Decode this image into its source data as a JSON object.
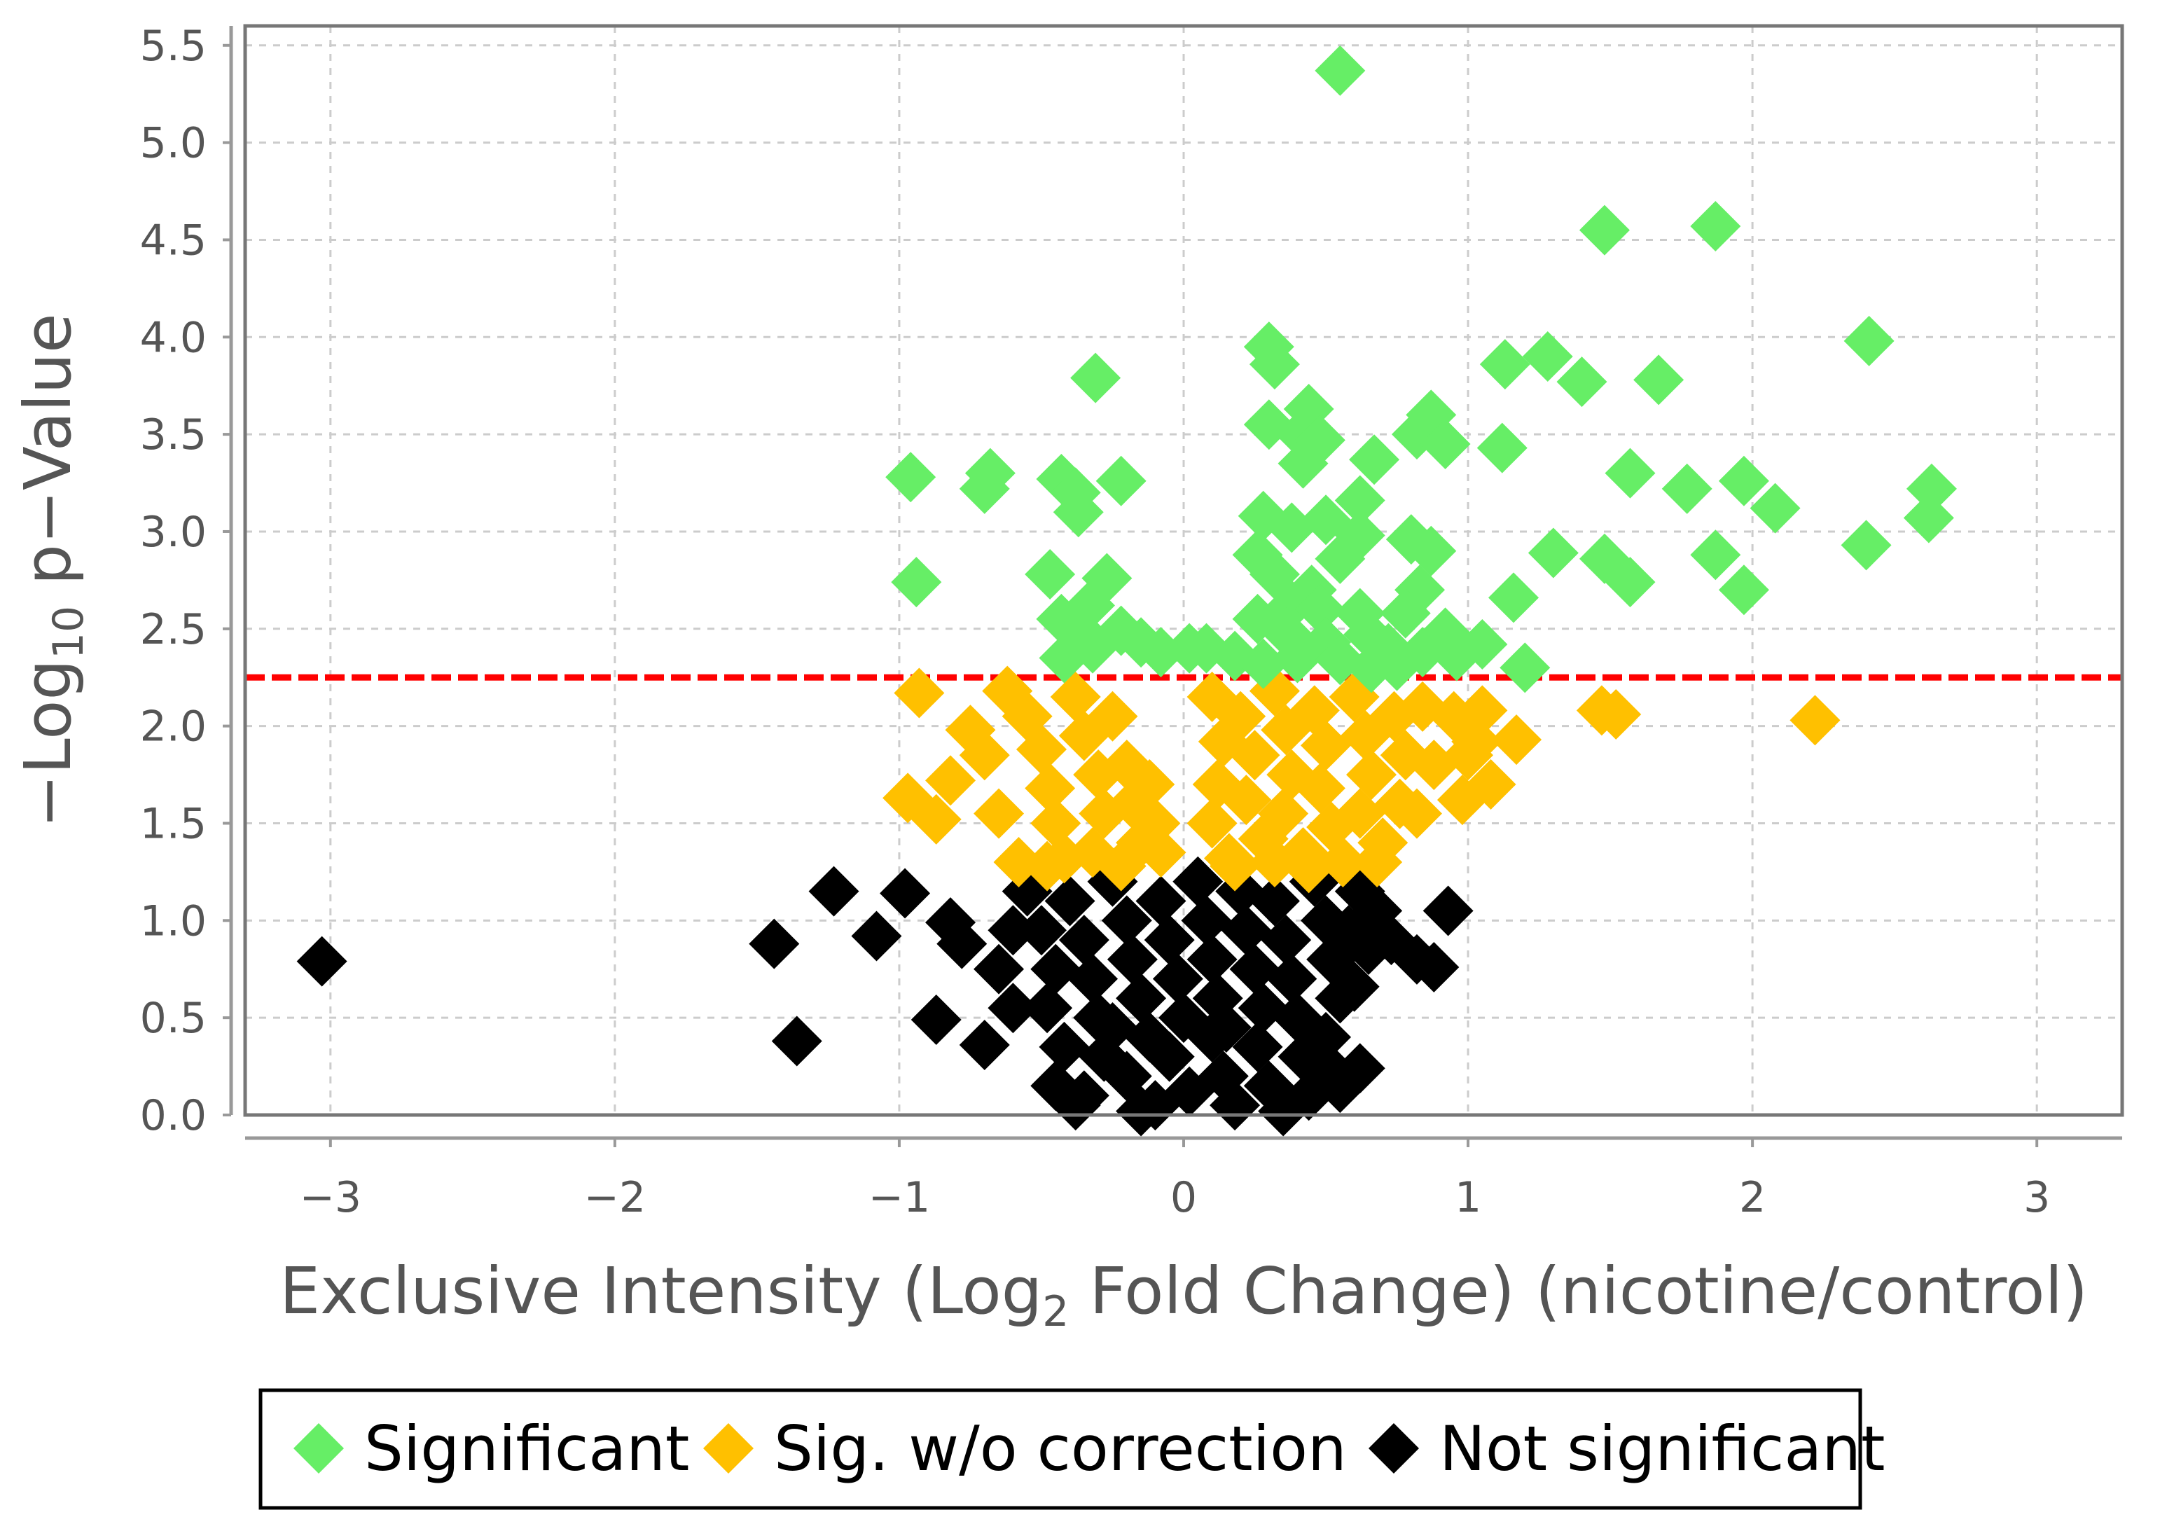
{
  "chart_data": {
    "type": "scatter",
    "xlabel_parts": [
      "Exclusive Intensity (Log",
      "2",
      " Fold Change) (nicotine/control)"
    ],
    "ylabel_parts": [
      "−Log",
      "10",
      " p−Value"
    ],
    "xlim": [
      -3.3,
      3.3
    ],
    "ylim": [
      0,
      5.6
    ],
    "xticks": [
      -3,
      -2,
      -1,
      0,
      1,
      2,
      3
    ],
    "xtick_labels": [
      "−3",
      "−2",
      "−1",
      "0",
      "1",
      "2",
      "3"
    ],
    "yticks": [
      0,
      0.5,
      1,
      1.5,
      2,
      2.5,
      3,
      3.5,
      4,
      4.5,
      5,
      5.5
    ],
    "ytick_labels": [
      "0.0",
      "0.5",
      "1.0",
      "1.5",
      "2.0",
      "2.5",
      "3.0",
      "3.5",
      "4.0",
      "4.5",
      "5.0",
      "5.5"
    ],
    "grid": true,
    "legend_position": "bottom",
    "threshold": {
      "y": 2.25,
      "color": "#ff0000",
      "style": "dashed"
    },
    "series": [
      {
        "name": "Significant",
        "color": "#66ee66",
        "points": [
          [
            0.55,
            5.37
          ],
          [
            1.48,
            4.55
          ],
          [
            1.87,
            4.57
          ],
          [
            2.41,
            3.98
          ],
          [
            1.13,
            3.86
          ],
          [
            1.28,
            3.9
          ],
          [
            1.4,
            3.77
          ],
          [
            1.67,
            3.78
          ],
          [
            0.3,
            3.95
          ],
          [
            0.32,
            3.86
          ],
          [
            0.44,
            3.63
          ],
          [
            0.3,
            3.55
          ],
          [
            0.41,
            3.5
          ],
          [
            0.48,
            3.47
          ],
          [
            0.42,
            3.35
          ],
          [
            0.67,
            3.37
          ],
          [
            0.82,
            3.5
          ],
          [
            0.87,
            3.6
          ],
          [
            0.92,
            3.45
          ],
          [
            1.12,
            3.43
          ],
          [
            1.57,
            3.3
          ],
          [
            1.77,
            3.22
          ],
          [
            1.97,
            3.26
          ],
          [
            2.08,
            3.12
          ],
          [
            2.63,
            3.22
          ],
          [
            2.62,
            3.07
          ],
          [
            2.4,
            2.93
          ],
          [
            1.3,
            2.89
          ],
          [
            1.48,
            2.86
          ],
          [
            1.87,
            2.88
          ],
          [
            1.97,
            2.7
          ],
          [
            1.57,
            2.74
          ],
          [
            1.16,
            2.66
          ],
          [
            1.05,
            2.42
          ],
          [
            1.2,
            2.3
          ],
          [
            -0.96,
            3.28
          ],
          [
            -0.7,
            3.22
          ],
          [
            -0.68,
            3.3
          ],
          [
            -0.43,
            3.27
          ],
          [
            -0.38,
            3.2
          ],
          [
            -0.37,
            3.1
          ],
          [
            -0.22,
            3.26
          ],
          [
            -0.31,
            3.79
          ],
          [
            -0.94,
            2.74
          ],
          [
            -0.47,
            2.78
          ],
          [
            -0.27,
            2.76
          ],
          [
            -0.33,
            2.62
          ],
          [
            -0.43,
            2.55
          ],
          [
            -0.35,
            2.47
          ],
          [
            -0.15,
            2.43
          ],
          [
            -0.42,
            2.35
          ],
          [
            -0.32,
            2.4
          ],
          [
            -0.22,
            2.49
          ],
          [
            -0.08,
            2.38
          ],
          [
            0.28,
            3.08
          ],
          [
            0.38,
            3.02
          ],
          [
            0.5,
            3.06
          ],
          [
            0.62,
            3.16
          ],
          [
            0.62,
            2.98
          ],
          [
            0.26,
            2.88
          ],
          [
            0.32,
            2.78
          ],
          [
            0.45,
            2.7
          ],
          [
            0.55,
            2.86
          ],
          [
            0.38,
            2.62
          ],
          [
            0.48,
            2.6
          ],
          [
            0.62,
            2.58
          ],
          [
            0.26,
            2.55
          ],
          [
            0.36,
            2.48
          ],
          [
            0.5,
            2.43
          ],
          [
            0.65,
            2.47
          ],
          [
            0.08,
            2.4
          ],
          [
            0.18,
            2.36
          ],
          [
            0.28,
            2.32
          ],
          [
            0.4,
            2.35
          ],
          [
            0.55,
            2.34
          ],
          [
            0.02,
            2.4
          ],
          [
            0.8,
            2.96
          ],
          [
            0.87,
            2.9
          ],
          [
            0.83,
            2.7
          ],
          [
            0.78,
            2.58
          ],
          [
            0.92,
            2.48
          ],
          [
            0.84,
            2.38
          ],
          [
            0.72,
            2.4
          ],
          [
            0.96,
            2.36
          ],
          [
            0.75,
            2.31
          ],
          [
            0.66,
            2.3
          ]
        ]
      },
      {
        "name": "Sig. w/o correction",
        "color": "#ffc000",
        "points": [
          [
            1.47,
            2.08
          ],
          [
            1.52,
            2.06
          ],
          [
            2.22,
            2.03
          ],
          [
            -0.93,
            2.17
          ],
          [
            -0.97,
            1.63
          ],
          [
            -0.87,
            1.52
          ],
          [
            -0.62,
            2.18
          ],
          [
            -0.75,
            1.98
          ],
          [
            -0.82,
            1.72
          ],
          [
            -0.7,
            1.85
          ],
          [
            -0.65,
            1.55
          ],
          [
            -0.55,
            2.05
          ],
          [
            -0.5,
            1.88
          ],
          [
            -0.47,
            1.68
          ],
          [
            -0.45,
            1.5
          ],
          [
            -0.42,
            1.32
          ],
          [
            -0.38,
            2.15
          ],
          [
            -0.35,
            1.95
          ],
          [
            -0.3,
            1.75
          ],
          [
            -0.28,
            1.55
          ],
          [
            -0.32,
            1.35
          ],
          [
            -0.25,
            2.05
          ],
          [
            -0.2,
            1.8
          ],
          [
            -0.18,
            1.6
          ],
          [
            -0.15,
            1.4
          ],
          [
            -0.12,
            1.7
          ],
          [
            -0.1,
            1.5
          ],
          [
            -0.58,
            1.3
          ],
          [
            -0.08,
            1.35
          ],
          [
            0.1,
            2.15
          ],
          [
            0.14,
            1.92
          ],
          [
            0.12,
            1.7
          ],
          [
            0.1,
            1.5
          ],
          [
            0.16,
            1.32
          ],
          [
            0.2,
            2.05
          ],
          [
            0.25,
            1.85
          ],
          [
            0.22,
            1.62
          ],
          [
            0.28,
            1.42
          ],
          [
            0.32,
            2.18
          ],
          [
            0.36,
            1.98
          ],
          [
            0.38,
            1.75
          ],
          [
            0.35,
            1.55
          ],
          [
            0.42,
            1.35
          ],
          [
            0.46,
            2.08
          ],
          [
            0.5,
            1.9
          ],
          [
            0.48,
            1.68
          ],
          [
            0.52,
            1.48
          ],
          [
            0.56,
            1.3
          ],
          [
            0.6,
            2.15
          ],
          [
            0.64,
            1.95
          ],
          [
            0.66,
            1.75
          ],
          [
            0.62,
            1.55
          ],
          [
            0.7,
            1.4
          ],
          [
            0.74,
            2.05
          ],
          [
            0.78,
            1.85
          ],
          [
            0.76,
            1.6
          ],
          [
            0.68,
            1.3
          ],
          [
            0.84,
            2.1
          ],
          [
            0.88,
            1.8
          ],
          [
            0.82,
            1.55
          ],
          [
            0.95,
            2.05
          ],
          [
            1.05,
            2.08
          ],
          [
            1.0,
            1.85
          ],
          [
            1.08,
            1.7
          ],
          [
            1.17,
            1.93
          ],
          [
            0.98,
            1.62
          ],
          [
            1.03,
            1.92
          ],
          [
            0.18,
            1.28
          ],
          [
            0.32,
            1.3
          ],
          [
            0.44,
            1.27
          ],
          [
            -0.22,
            1.28
          ],
          [
            -0.48,
            1.28
          ]
        ]
      },
      {
        "name": "Not significant",
        "color": "#000000",
        "points": [
          [
            -3.03,
            0.79
          ],
          [
            -1.44,
            0.88
          ],
          [
            -1.23,
            1.15
          ],
          [
            -0.98,
            1.14
          ],
          [
            -1.08,
            0.92
          ],
          [
            -0.82,
            0.99
          ],
          [
            -0.87,
            0.49
          ],
          [
            -1.36,
            0.38
          ],
          [
            -0.7,
            0.36
          ],
          [
            -0.6,
            0.55
          ],
          [
            -0.78,
            0.88
          ],
          [
            0.93,
            1.05
          ],
          [
            0.82,
            0.8
          ],
          [
            0.88,
            0.76
          ],
          [
            0.73,
            0.9
          ],
          [
            0.6,
            0.66
          ],
          [
            0.55,
            0.14
          ],
          [
            0.5,
            0.26
          ],
          [
            0.62,
            0.24
          ],
          [
            -0.55,
            1.15
          ],
          [
            -0.5,
            0.95
          ],
          [
            -0.45,
            0.75
          ],
          [
            -0.48,
            0.55
          ],
          [
            -0.42,
            0.35
          ],
          [
            -0.45,
            0.15
          ],
          [
            -0.4,
            1.1
          ],
          [
            -0.35,
            0.9
          ],
          [
            -0.32,
            0.7
          ],
          [
            -0.3,
            0.5
          ],
          [
            -0.28,
            0.3
          ],
          [
            -0.35,
            0.1
          ],
          [
            -0.25,
            1.2
          ],
          [
            -0.2,
            1.0
          ],
          [
            -0.18,
            0.8
          ],
          [
            -0.15,
            0.6
          ],
          [
            -0.12,
            0.4
          ],
          [
            -0.2,
            0.2
          ],
          [
            -0.1,
            0.05
          ],
          [
            -0.08,
            1.1
          ],
          [
            -0.05,
            0.9
          ],
          [
            -0.02,
            0.7
          ],
          [
            0.0,
            0.5
          ],
          [
            -0.05,
            0.3
          ],
          [
            0.02,
            0.12
          ],
          [
            0.05,
            1.2
          ],
          [
            0.08,
            1.0
          ],
          [
            0.1,
            0.8
          ],
          [
            0.12,
            0.6
          ],
          [
            0.1,
            0.4
          ],
          [
            0.14,
            0.2
          ],
          [
            0.18,
            0.05
          ],
          [
            0.2,
            1.15
          ],
          [
            0.22,
            0.95
          ],
          [
            0.25,
            0.75
          ],
          [
            0.28,
            0.55
          ],
          [
            0.26,
            0.35
          ],
          [
            0.3,
            0.15
          ],
          [
            0.32,
            1.1
          ],
          [
            0.36,
            0.9
          ],
          [
            0.38,
            0.7
          ],
          [
            0.4,
            0.5
          ],
          [
            0.42,
            0.3
          ],
          [
            0.44,
            0.1
          ],
          [
            0.46,
            1.2
          ],
          [
            0.5,
            1.0
          ],
          [
            0.52,
            0.8
          ],
          [
            0.55,
            0.6
          ],
          [
            0.5,
            0.4
          ],
          [
            0.58,
            0.95
          ],
          [
            0.62,
            1.15
          ],
          [
            0.65,
            0.85
          ],
          [
            0.68,
            1.05
          ],
          [
            -0.6,
            0.95
          ],
          [
            -0.65,
            0.75
          ],
          [
            -0.38,
            0.05
          ],
          [
            0.35,
            0.02
          ],
          [
            -0.15,
            0.02
          ],
          [
            0.15,
            0.45
          ],
          [
            -0.25,
            0.45
          ]
        ]
      }
    ]
  }
}
